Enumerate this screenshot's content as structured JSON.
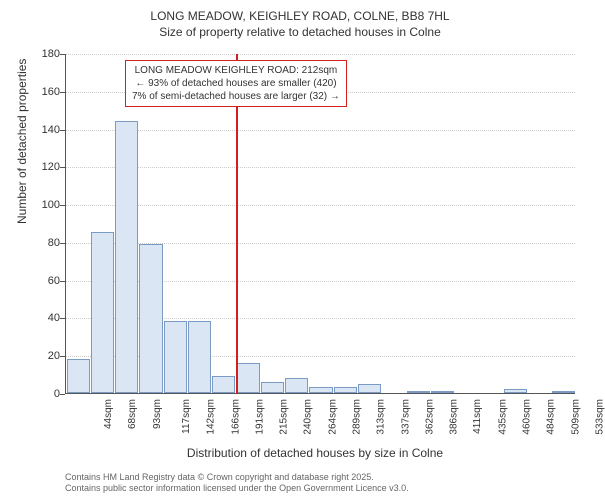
{
  "title_line1": "LONG MEADOW, KEIGHLEY ROAD, COLNE, BB8 7HL",
  "title_line2": "Size of property relative to detached houses in Colne",
  "chart": {
    "type": "histogram",
    "y_axis_title": "Number of detached properties",
    "x_axis_title": "Distribution of detached houses by size in Colne",
    "ylim": [
      0,
      180
    ],
    "ytick_step": 20,
    "yticks": [
      0,
      20,
      40,
      60,
      80,
      100,
      120,
      140,
      160,
      180
    ],
    "x_categories": [
      "44sqm",
      "68sqm",
      "93sqm",
      "117sqm",
      "142sqm",
      "166sqm",
      "191sqm",
      "215sqm",
      "240sqm",
      "264sqm",
      "289sqm",
      "313sqm",
      "337sqm",
      "362sqm",
      "386sqm",
      "411sqm",
      "435sqm",
      "460sqm",
      "484sqm",
      "509sqm",
      "533sqm"
    ],
    "values": [
      18,
      85,
      144,
      79,
      38,
      38,
      9,
      16,
      6,
      8,
      3,
      3,
      5,
      0,
      1,
      1,
      0,
      0,
      2,
      0,
      1
    ],
    "bar_fill": "#dae6f4",
    "bar_border": "#7a9bc4",
    "grid_color": "#cccccc",
    "axis_color": "#555555",
    "background_color": "#ffffff",
    "tick_fontsize": 11,
    "xtick_fontsize": 10,
    "axis_title_fontsize": 12,
    "bar_width_ratio": 0.95,
    "marker": {
      "category_index": 7,
      "color": "#d02020",
      "box_lines": [
        "LONG MEADOW KEIGHLEY ROAD: 212sqm",
        "← 93% of detached houses are smaller (420)",
        "7% of semi-detached houses are larger (32) →"
      ]
    }
  },
  "footer_line1": "Contains HM Land Registry data © Crown copyright and database right 2025.",
  "footer_line2": "Contains public sector information licensed under the Open Government Licence v3.0."
}
